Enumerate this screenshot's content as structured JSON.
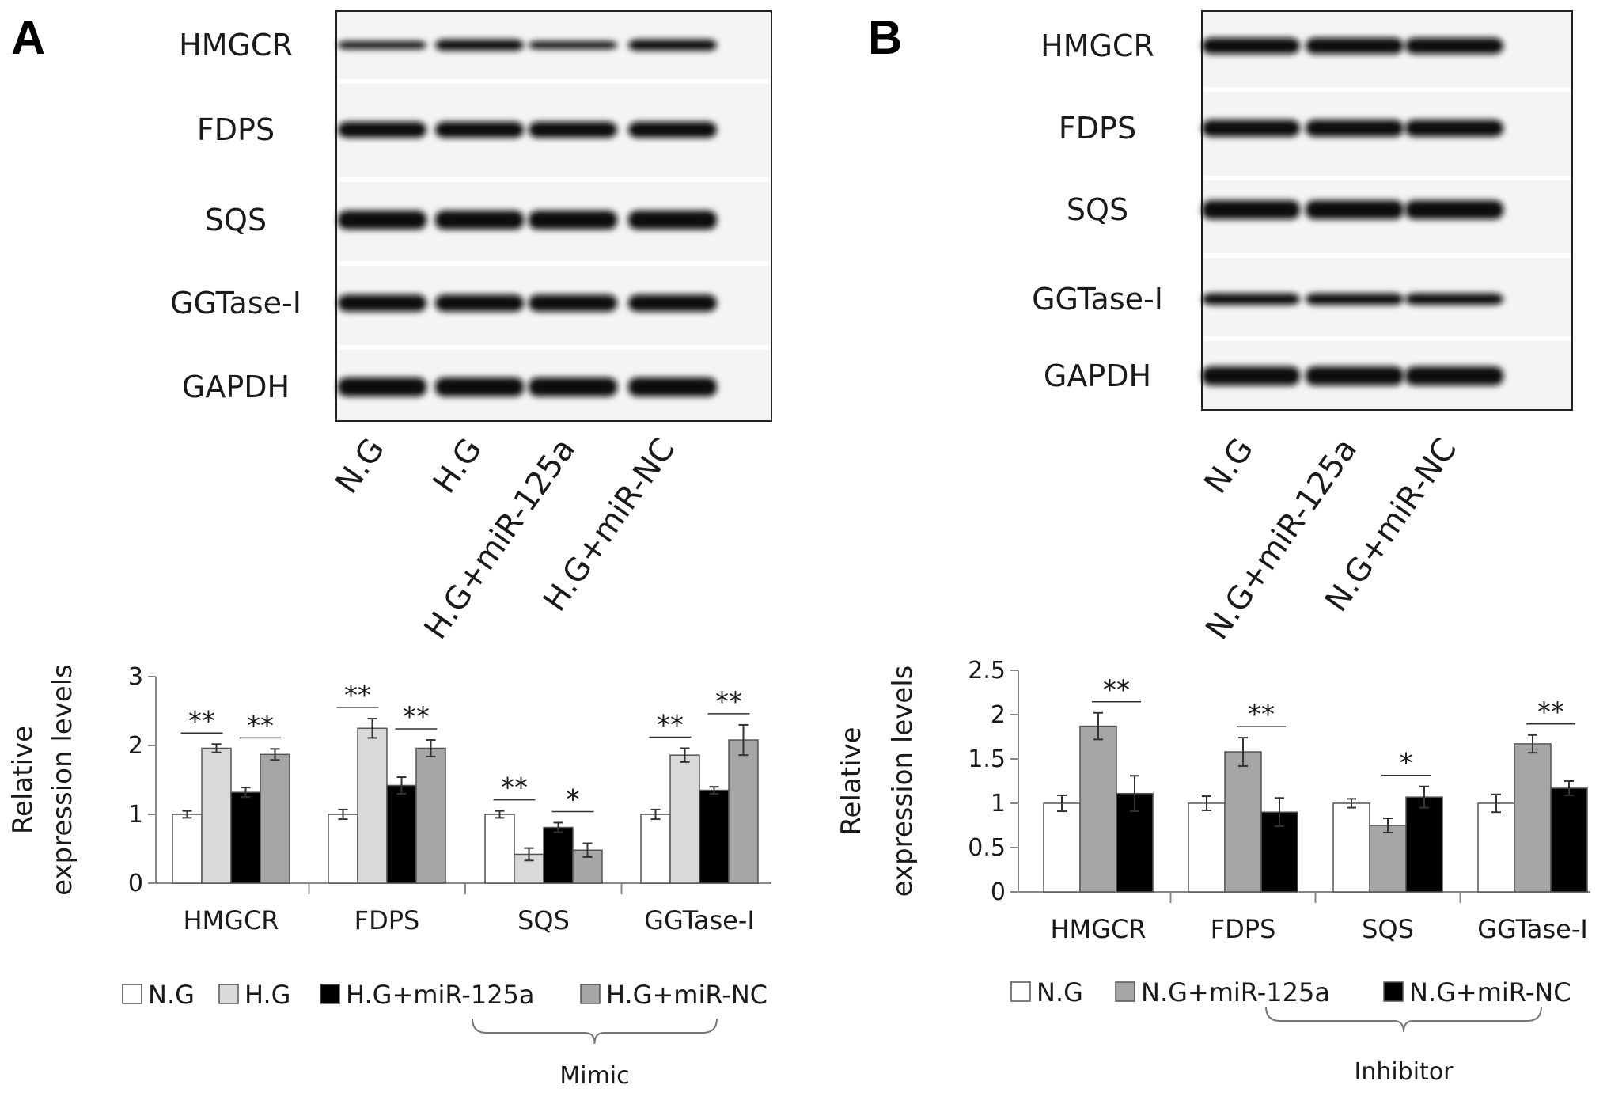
{
  "panels": [
    {
      "letter": "A",
      "blot": {
        "proteins": [
          "HMGCR",
          "FDPS",
          "SQS",
          "GGTase-I",
          "GAPDH"
        ],
        "lanes": [
          "N.G",
          "H.G",
          "H.G+miR-125a",
          "H.G+miR-NC"
        ]
      },
      "legend_bracket_label": "Mimic"
    },
    {
      "letter": "B",
      "blot": {
        "proteins": [
          "HMGCR",
          "FDPS",
          "SQS",
          "GGTase-I",
          "GAPDH"
        ],
        "lanes": [
          "N.G",
          "N.G+miR-125a",
          "N.G+miR-NC"
        ]
      },
      "legend_bracket_label": "Inhibitor"
    }
  ],
  "chart_data": [
    {
      "type": "bar",
      "panel": "A",
      "ylabel": "Relative expression levels",
      "ylim": [
        0,
        3
      ],
      "yticks": [
        "0",
        "1",
        "2",
        "3"
      ],
      "categories": [
        "HMGCR",
        "FDPS",
        "SQS",
        "GGTase-I"
      ],
      "series": [
        {
          "name": "N.G",
          "color": "#ffffff",
          "values": [
            1.0,
            1.0,
            1.0,
            1.0
          ],
          "errors": [
            0.05,
            0.07,
            0.05,
            0.07
          ]
        },
        {
          "name": "H.G",
          "color": "#d9d9d9",
          "values": [
            1.96,
            2.25,
            0.42,
            1.86
          ],
          "errors": [
            0.06,
            0.14,
            0.09,
            0.1
          ]
        },
        {
          "name": "H.G+miR-125a",
          "color": "#000000",
          "values": [
            1.32,
            1.42,
            0.81,
            1.35
          ],
          "errors": [
            0.07,
            0.12,
            0.07,
            0.05
          ]
        },
        {
          "name": "H.G+miR-NC",
          "color": "#a6a6a6",
          "values": [
            1.87,
            1.96,
            0.48,
            2.08
          ],
          "errors": [
            0.08,
            0.12,
            0.1,
            0.22
          ]
        }
      ],
      "significance": [
        {
          "category": 0,
          "from": 0,
          "to": 1,
          "label": "**"
        },
        {
          "category": 0,
          "from": 2,
          "to": 3,
          "label": "**"
        },
        {
          "category": 1,
          "from": 0,
          "to": 1,
          "label": "**"
        },
        {
          "category": 1,
          "from": 2,
          "to": 3,
          "label": "**"
        },
        {
          "category": 2,
          "from": 0,
          "to": 1,
          "label": "**"
        },
        {
          "category": 2,
          "from": 2,
          "to": 3,
          "label": "*"
        },
        {
          "category": 3,
          "from": 0,
          "to": 1,
          "label": "**"
        },
        {
          "category": 3,
          "from": 2,
          "to": 3,
          "label": "**"
        }
      ],
      "legend": [
        "N.G",
        "H.G",
        "H.G+miR-125a",
        "H.G+miR-NC"
      ]
    },
    {
      "type": "bar",
      "panel": "B",
      "ylabel": "Relative expression levels",
      "ylim": [
        0,
        2.5
      ],
      "yticks": [
        "0",
        "0.5",
        "1",
        "1.5",
        "2",
        "2.5"
      ],
      "categories": [
        "HMGCR",
        "FDPS",
        "SQS",
        "GGTase-I"
      ],
      "series": [
        {
          "name": "N.G",
          "color": "#ffffff",
          "values": [
            1.0,
            1.0,
            1.0,
            1.0
          ],
          "errors": [
            0.09,
            0.08,
            0.05,
            0.1
          ]
        },
        {
          "name": "N.G+miR-125a",
          "color": "#a6a6a6",
          "values": [
            1.87,
            1.58,
            0.75,
            1.67
          ],
          "errors": [
            0.15,
            0.16,
            0.08,
            0.1
          ]
        },
        {
          "name": "N.G+miR-NC",
          "color": "#000000",
          "values": [
            1.11,
            0.9,
            1.07,
            1.17
          ],
          "errors": [
            0.2,
            0.16,
            0.12,
            0.08
          ]
        }
      ],
      "significance": [
        {
          "category": 0,
          "from": 1,
          "to": 2,
          "label": "**"
        },
        {
          "category": 1,
          "from": 1,
          "to": 2,
          "label": "**"
        },
        {
          "category": 2,
          "from": 1,
          "to": 2,
          "label": "*"
        },
        {
          "category": 3,
          "from": 1,
          "to": 2,
          "label": "**"
        }
      ],
      "legend": [
        "N.G",
        "N.G+miR-125a",
        "N.G+miR-NC"
      ]
    }
  ]
}
